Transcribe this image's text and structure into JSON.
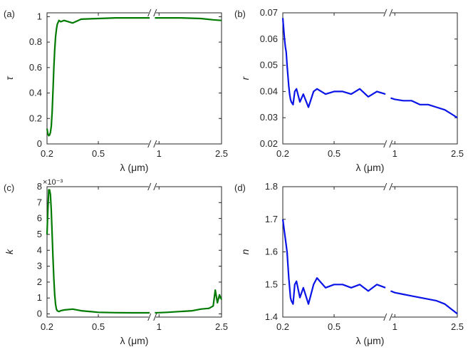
{
  "chart_data": [
    {
      "id": "a",
      "type": "line",
      "panel_label": "(a)",
      "xlabel": "λ (μm)",
      "ylabel": "τ",
      "color": "#007a00",
      "axis_break": "between 0.8 and 0.9 μm",
      "x_ticks": [
        "0.2",
        "0.5",
        "1",
        "2.5"
      ],
      "y_ticks": [
        "0",
        "0.2",
        "0.4",
        "0.6",
        "0.8",
        "1"
      ],
      "ylim": [
        0,
        1.03
      ],
      "x": [
        0.2,
        0.205,
        0.21,
        0.215,
        0.22,
        0.225,
        0.23,
        0.235,
        0.24,
        0.245,
        0.25,
        0.255,
        0.26,
        0.27,
        0.28,
        0.3,
        0.35,
        0.4,
        0.5,
        0.6,
        0.7,
        0.8,
        0.9,
        1.0,
        1.2,
        1.5,
        2.0,
        2.3,
        2.5
      ],
      "values": [
        0.12,
        0.08,
        0.065,
        0.07,
        0.09,
        0.14,
        0.25,
        0.42,
        0.6,
        0.74,
        0.84,
        0.9,
        0.94,
        0.97,
        0.96,
        0.97,
        0.95,
        0.98,
        0.985,
        0.99,
        0.99,
        0.99,
        0.99,
        0.99,
        0.99,
        0.99,
        0.985,
        0.975,
        0.97
      ]
    },
    {
      "id": "b",
      "type": "line",
      "panel_label": "(b)",
      "xlabel": "λ (μm)",
      "ylabel": "r",
      "color": "#0a14e6",
      "axis_break": "between 0.8 and 0.9 μm",
      "x_ticks": [
        "0.2",
        "0.5",
        "1",
        "2.5"
      ],
      "y_ticks": [
        "0.02",
        "0.03",
        "0.04",
        "0.05",
        "0.06",
        "0.07"
      ],
      "ylim": [
        0.02,
        0.07
      ],
      "x": [
        0.2,
        0.205,
        0.21,
        0.215,
        0.22,
        0.225,
        0.23,
        0.235,
        0.24,
        0.245,
        0.25,
        0.26,
        0.27,
        0.28,
        0.3,
        0.32,
        0.35,
        0.38,
        0.4,
        0.45,
        0.5,
        0.55,
        0.6,
        0.65,
        0.7,
        0.75,
        0.8,
        0.9,
        1.0,
        1.2,
        1.4,
        1.6,
        1.8,
        2.0,
        2.2,
        2.4,
        2.5
      ],
      "values": [
        0.068,
        0.064,
        0.06,
        0.057,
        0.055,
        0.05,
        0.046,
        0.042,
        0.039,
        0.037,
        0.036,
        0.035,
        0.04,
        0.041,
        0.036,
        0.039,
        0.034,
        0.04,
        0.041,
        0.039,
        0.04,
        0.04,
        0.039,
        0.041,
        0.038,
        0.04,
        0.039,
        0.0375,
        0.037,
        0.0365,
        0.0365,
        0.035,
        0.035,
        0.034,
        0.033,
        0.031,
        0.03
      ]
    },
    {
      "id": "c",
      "type": "line",
      "panel_label": "(c)",
      "xlabel": "λ (μm)",
      "ylabel": "k",
      "color": "#007a00",
      "axis_break": "between 0.8 and 0.9 μm",
      "y_exponent": "×10⁻³",
      "x_ticks": [
        "0.2",
        "0.5",
        "1",
        "2.5"
      ],
      "y_ticks": [
        "0",
        "1",
        "2",
        "3",
        "4",
        "5",
        "6",
        "7",
        "8"
      ],
      "ylim": [
        -0.2,
        8
      ],
      "x": [
        0.2,
        0.205,
        0.21,
        0.215,
        0.22,
        0.225,
        0.23,
        0.235,
        0.24,
        0.245,
        0.25,
        0.255,
        0.26,
        0.27,
        0.28,
        0.3,
        0.35,
        0.4,
        0.5,
        0.6,
        0.7,
        0.8,
        0.9,
        1.0,
        1.2,
        1.5,
        1.8,
        2.0,
        2.2,
        2.3,
        2.35,
        2.4,
        2.45,
        2.5
      ],
      "values": [
        5.0,
        6.5,
        7.8,
        7.8,
        7.5,
        6.5,
        5.0,
        3.5,
        2.2,
        1.2,
        0.6,
        0.3,
        0.2,
        0.15,
        0.2,
        0.25,
        0.3,
        0.2,
        0.1,
        0.08,
        0.07,
        0.07,
        0.07,
        0.08,
        0.1,
        0.15,
        0.2,
        0.3,
        0.35,
        0.5,
        1.5,
        0.7,
        1.2,
        0.9
      ]
    },
    {
      "id": "d",
      "type": "line",
      "panel_label": "(d)",
      "xlabel": "λ (μm)",
      "ylabel": "n",
      "color": "#0a14e6",
      "axis_break": "between 0.8 and 0.9 μm",
      "x_ticks": [
        "0.2",
        "0.5",
        "1",
        "2.5"
      ],
      "y_ticks": [
        "1.4",
        "1.5",
        "1.6",
        "1.7",
        "1.8"
      ],
      "ylim": [
        1.4,
        1.8
      ],
      "x": [
        0.2,
        0.205,
        0.21,
        0.215,
        0.22,
        0.225,
        0.23,
        0.235,
        0.24,
        0.245,
        0.25,
        0.26,
        0.27,
        0.28,
        0.3,
        0.32,
        0.35,
        0.38,
        0.4,
        0.45,
        0.5,
        0.55,
        0.6,
        0.65,
        0.7,
        0.75,
        0.8,
        0.9,
        1.0,
        1.2,
        1.4,
        1.6,
        1.8,
        2.0,
        2.2,
        2.4,
        2.5
      ],
      "values": [
        1.7,
        1.68,
        1.66,
        1.64,
        1.62,
        1.6,
        1.56,
        1.52,
        1.49,
        1.46,
        1.45,
        1.44,
        1.5,
        1.51,
        1.46,
        1.49,
        1.44,
        1.5,
        1.52,
        1.49,
        1.5,
        1.5,
        1.49,
        1.5,
        1.48,
        1.5,
        1.49,
        1.48,
        1.475,
        1.47,
        1.465,
        1.46,
        1.455,
        1.45,
        1.44,
        1.42,
        1.41
      ]
    }
  ]
}
